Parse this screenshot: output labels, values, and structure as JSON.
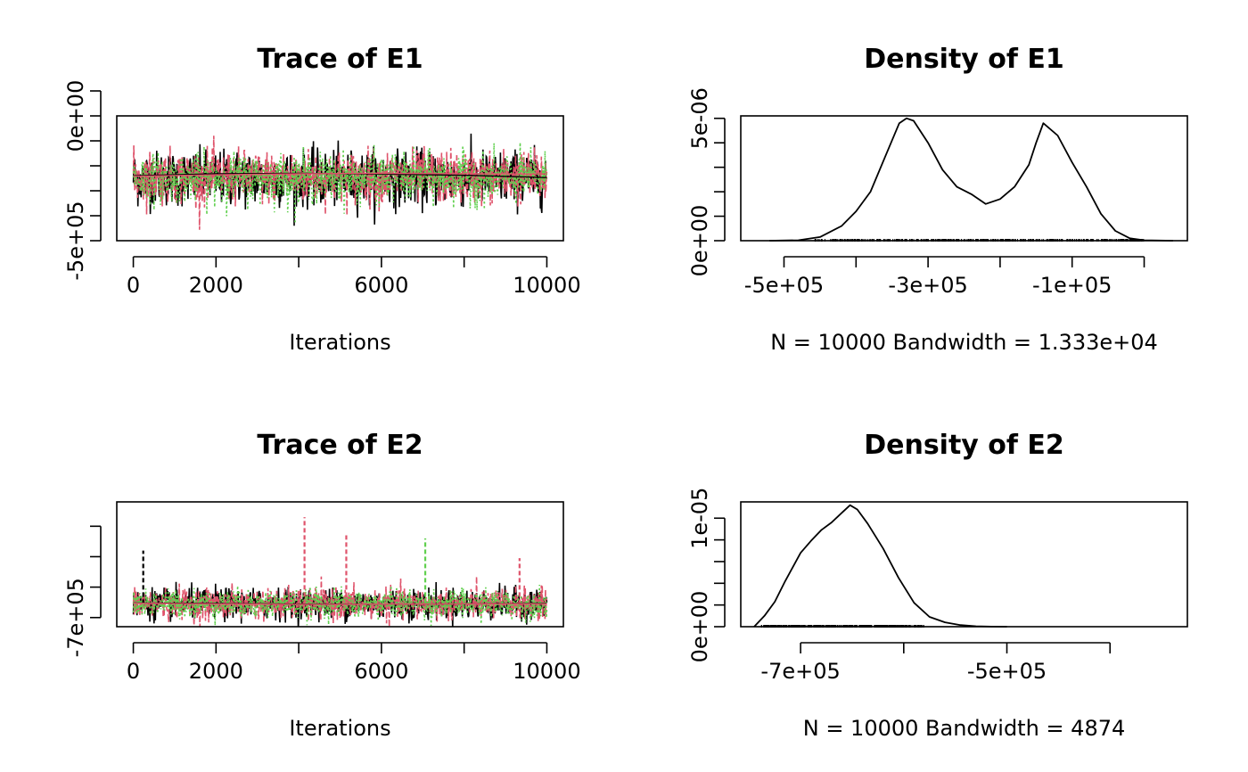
{
  "colors": {
    "chain1": "#000000",
    "chain2": "#DF536B",
    "chain3": "#61D04F",
    "rug": "#000000",
    "zero_line": "#BEBEBE"
  },
  "chart_data": [
    {
      "type": "line",
      "title": "Trace of E1",
      "xlabel": "Iterations",
      "x_ticks": [
        0,
        2000,
        4000,
        6000,
        8000,
        10000
      ],
      "x_tick_labels": [
        "0",
        "2000",
        "",
        "6000",
        "",
        "10000"
      ],
      "xlim": [
        -400,
        10400
      ],
      "y_ticks": [
        -500000,
        -400000,
        -300000,
        -200000,
        -100000,
        0,
        100000
      ],
      "y_tick_labels": [
        "-5e+05",
        "",
        "",
        "",
        "",
        "0e+00",
        ""
      ],
      "ylim": [
        -500000,
        0
      ],
      "series": [
        {
          "color": "chain1",
          "center": -250000,
          "spread": 130000,
          "max_excursion": 255000
        },
        {
          "color": "chain2",
          "center": -245000,
          "spread": 125000,
          "max_excursion": 250000
        },
        {
          "color": "chain3",
          "center": -250000,
          "spread": 115000,
          "max_excursion": 235000
        }
      ],
      "smooth_lines": [
        {
          "color": "chain1",
          "x": [
            0,
            2000,
            4000,
            6000,
            8000,
            10000
          ],
          "y": [
            -240000,
            -232000,
            -230000,
            -233000,
            -238000,
            -247000
          ]
        },
        {
          "color": "chain2",
          "x": [
            0,
            2000,
            4000,
            6000,
            8000,
            10000
          ],
          "y": [
            -242000,
            -236000,
            -232000,
            -230000,
            -232000,
            -233000
          ]
        }
      ]
    },
    {
      "type": "line",
      "title": "Density of E1",
      "xlabel": "N = 10000   Bandwidth = 1.333e+04",
      "x_ticks": [
        -500000,
        -400000,
        -300000,
        -200000,
        -100000,
        0
      ],
      "x_tick_labels": [
        "-5e+05",
        "",
        "-3e+05",
        "",
        "-1e+05",
        ""
      ],
      "xlim": [
        -560000,
        60000
      ],
      "y_ticks": [
        0,
        1e-06,
        2e-06,
        3e-06,
        4e-06,
        5e-06
      ],
      "y_tick_labels": [
        "0e+00",
        "",
        "",
        "",
        "",
        "5e-06"
      ],
      "ylim": [
        0,
        5.1e-06
      ],
      "density": {
        "x": [
          -520000,
          -480000,
          -450000,
          -420000,
          -400000,
          -380000,
          -360000,
          -340000,
          -330000,
          -320000,
          -300000,
          -280000,
          -260000,
          -240000,
          -220000,
          -200000,
          -180000,
          -160000,
          -150000,
          -140000,
          -120000,
          -100000,
          -80000,
          -60000,
          -40000,
          -20000,
          0,
          40000
        ],
        "y": [
          0,
          2e-08,
          1.5e-07,
          6e-07,
          1.2e-06,
          2e-06,
          3.4e-06,
          4.8e-06,
          5e-06,
          4.9e-06,
          4e-06,
          2.9e-06,
          2.2e-06,
          1.9e-06,
          1.5e-06,
          1.7e-06,
          2.2e-06,
          3.1e-06,
          4e-06,
          4.8e-06,
          4.3e-06,
          3.2e-06,
          2.2e-06,
          1.1e-06,
          4e-07,
          1e-07,
          2e-08,
          0
        ]
      },
      "rug_range": [
        -460000,
        0
      ]
    },
    {
      "type": "line",
      "title": "Trace of E2",
      "xlabel": "Iterations",
      "x_ticks": [
        0,
        2000,
        4000,
        6000,
        8000,
        10000
      ],
      "x_tick_labels": [
        "0",
        "2000",
        "",
        "6000",
        "",
        "10000"
      ],
      "xlim": [
        -400,
        10400
      ],
      "y_ticks": [
        -700000,
        -600000,
        -500000,
        -400000
      ],
      "y_tick_labels": [
        "-7e+05",
        "",
        "",
        ""
      ],
      "ylim": [
        -730000,
        -320000
      ],
      "series": [
        {
          "color": "chain1",
          "center": -655000,
          "spread": 60000,
          "max_excursion": 110000
        },
        {
          "color": "chain2",
          "center": -655000,
          "spread": 60000,
          "max_excursion": 110000
        },
        {
          "color": "chain3",
          "center": -655000,
          "spread": 55000,
          "max_excursion": 80000
        }
      ],
      "spikes": [
        {
          "x": 4140,
          "y": -370000,
          "color": "chain2"
        },
        {
          "x": 5150,
          "y": -430000,
          "color": "chain2"
        },
        {
          "x": 7060,
          "y": -440000,
          "color": "chain3"
        },
        {
          "x": 240,
          "y": -480000,
          "color": "chain1"
        },
        {
          "x": 9340,
          "y": -505000,
          "color": "chain2"
        }
      ],
      "smooth_lines": [
        {
          "color": "chain1",
          "x": [
            0,
            2000,
            4000,
            6000,
            8000,
            10000
          ],
          "y": [
            -652000,
            -654000,
            -656000,
            -656000,
            -655000,
            -654000
          ]
        },
        {
          "color": "chain2",
          "x": [
            0,
            2000,
            4000,
            6000,
            8000,
            10000
          ],
          "y": [
            -653000,
            -655000,
            -657000,
            -656000,
            -655000,
            -655000
          ]
        }
      ]
    },
    {
      "type": "line",
      "title": "Density of E2",
      "xlabel": "N = 10000   Bandwidth = 4874",
      "x_ticks": [
        -700000,
        -600000,
        -500000,
        -400000
      ],
      "x_tick_labels": [
        "-7e+05",
        "",
        "-5e+05",
        ""
      ],
      "xlim": [
        -758000,
        -325000
      ],
      "y_ticks": [
        0,
        2e-06,
        4e-06,
        6e-06,
        8e-06,
        1e-05
      ],
      "y_tick_labels": [
        "0e+00",
        "",
        "",
        "",
        "",
        "1e-05"
      ],
      "ylim": [
        0,
        1.15e-05
      ],
      "density": {
        "x": [
          -745000,
          -735000,
          -725000,
          -715000,
          -700000,
          -690000,
          -680000,
          -670000,
          -660000,
          -652000,
          -645000,
          -635000,
          -620000,
          -605000,
          -590000,
          -575000,
          -560000,
          -545000,
          -530000,
          -515000,
          -500000
        ],
        "y": [
          0,
          1e-06,
          2.3e-06,
          4.2e-06,
          6.8e-06,
          7.9e-06,
          8.9e-06,
          9.6e-06,
          1.05e-05,
          1.12e-05,
          1.08e-05,
          9.5e-06,
          7.2e-06,
          4.5e-06,
          2.2e-06,
          9e-07,
          4e-07,
          1.5e-07,
          4e-08,
          1e-08,
          0
        ]
      },
      "rug_range": [
        -738000,
        -580000
      ]
    }
  ]
}
